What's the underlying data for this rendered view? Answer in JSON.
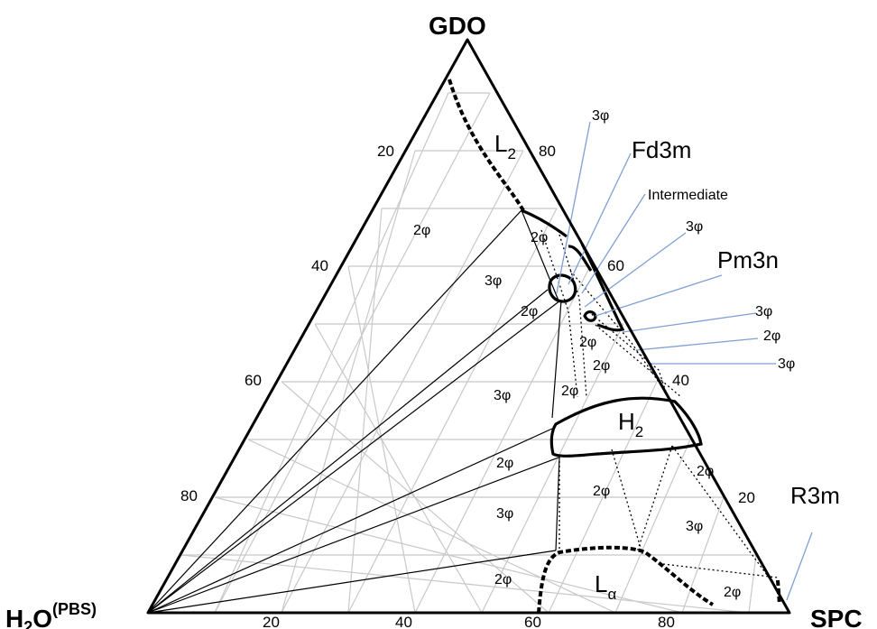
{
  "vertices": {
    "top": "GDO",
    "left_main": "H",
    "left_sub": "2",
    "left_rest": "O",
    "left_sup": "(PBS)",
    "right": "SPC"
  },
  "ticks": {
    "bottom": [
      "20",
      "40",
      "60",
      "80"
    ],
    "left": [
      "20",
      "40",
      "60",
      "80"
    ],
    "right": [
      "80",
      "60",
      "40",
      "20"
    ]
  },
  "phases": {
    "L2_main": "L",
    "L2_sub": "2",
    "H2_main": "H",
    "H2_sub": "2",
    "La_main": "L",
    "La_sub": "α"
  },
  "callouts": {
    "fd3m": "Fd3m",
    "intermediate": "Intermediate",
    "pm3n": "Pm3n",
    "r3m": "R3m",
    "c3phi_top": "3φ",
    "c3phi_mid": "3φ",
    "c3phi_r1": "3φ",
    "c2phi_r2": "2φ",
    "c3phi_r3": "3φ"
  },
  "regions": {
    "r1": "2φ",
    "r2": "2φ",
    "r3": "3φ",
    "r4": "2φ",
    "r5": "2φ",
    "r6": "3φ",
    "r7": "2φ",
    "r8": "2φ",
    "r9": "2φ",
    "r10": "2φ",
    "r11": "3φ",
    "r12": "2φ",
    "r13": "3φ",
    "r14": "2φ",
    "r15": "2φ"
  }
}
